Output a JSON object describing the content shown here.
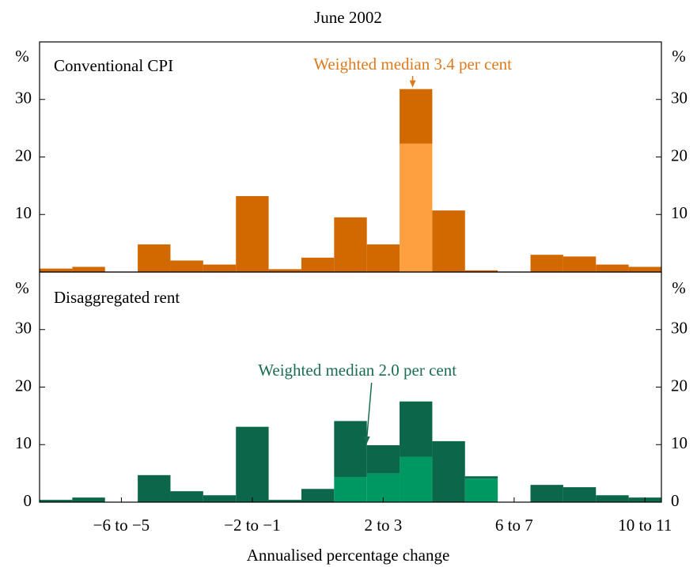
{
  "chart_data": [
    {
      "type": "histogram",
      "title": "June 2002",
      "label": "Conventional CPI",
      "y_unit": "%",
      "bins": [
        -8,
        -7,
        -6,
        -5,
        -4,
        -3,
        -2,
        -1,
        0,
        1,
        2,
        3,
        4,
        5,
        6,
        7,
        8,
        9,
        10,
        11
      ],
      "xlim": [
        -8,
        11
      ],
      "ylim": [
        0,
        40
      ],
      "yticks": [
        10,
        20,
        30
      ],
      "stacked": true,
      "series": [
        {
          "color": "#ffa040",
          "values": [
            0,
            0,
            0,
            0,
            0,
            0,
            0,
            0,
            0,
            0,
            0,
            22.3,
            0,
            0,
            0,
            0,
            0,
            0,
            0
          ]
        },
        {
          "color": "#d26800",
          "values": [
            0.6,
            0.9,
            0,
            4.8,
            2.0,
            1.3,
            13.2,
            0.5,
            2.5,
            9.5,
            4.8,
            9.5,
            10.7,
            0.3,
            0,
            3.0,
            2.7,
            1.3,
            0.9
          ]
        }
      ],
      "annotations": [
        {
          "text": "Weighted median 3.4 per cent",
          "x": 3.4,
          "color": "#dd7a1c"
        }
      ]
    },
    {
      "type": "histogram",
      "label": "Disaggregated rent",
      "y_unit": "%",
      "xlabel": "Annualised percentage change",
      "bins": [
        -8,
        -7,
        -6,
        -5,
        -4,
        -3,
        -2,
        -1,
        0,
        1,
        2,
        3,
        4,
        5,
        6,
        7,
        8,
        9,
        10,
        11
      ],
      "xlim": [
        -8,
        11
      ],
      "ylim": [
        0,
        40
      ],
      "yticks": [
        0,
        10,
        20,
        30
      ],
      "stacked": true,
      "xticks": [
        {
          "value": -5.5,
          "label": "−6 to −5"
        },
        {
          "value": -1.5,
          "label": "−2 to −1"
        },
        {
          "value": 2.5,
          "label": "2 to 3"
        },
        {
          "value": 6.5,
          "label": "6 to 7"
        },
        {
          "value": 10.5,
          "label": "10 to 11"
        }
      ],
      "series": [
        {
          "color": "#009862",
          "values": [
            0,
            0,
            0,
            0,
            0,
            0,
            0,
            0,
            0,
            4.4,
            5.0,
            7.9,
            0,
            4.1,
            0,
            0,
            0,
            0,
            0
          ]
        },
        {
          "color": "#0b664a",
          "values": [
            0.4,
            0.8,
            0,
            4.7,
            1.9,
            1.2,
            13.1,
            0.4,
            2.3,
            9.7,
            4.9,
            9.6,
            10.6,
            0.4,
            0,
            3.0,
            2.6,
            1.2,
            0.8
          ]
        }
      ],
      "annotations": [
        {
          "text": "Weighted median 2.0 per cent",
          "x": 2.0,
          "color": "#1a6e50"
        }
      ]
    }
  ]
}
